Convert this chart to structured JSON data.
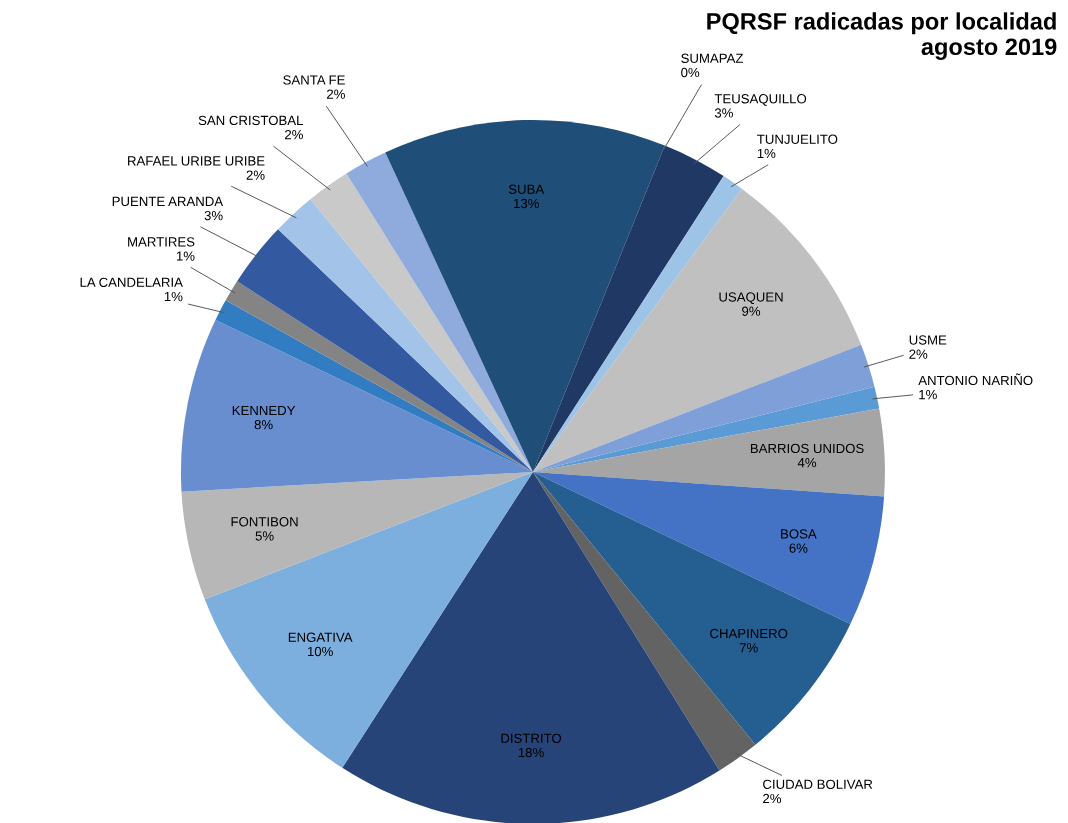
{
  "chart_data": {
    "type": "pie",
    "title": "PQRSF radicadas por localidad\nagosto 2019",
    "categories": [
      "ANTONIO NARIÑO",
      "BARRIOS UNIDOS",
      "BOSA",
      "CHAPINERO",
      "CIUDAD BOLIVAR",
      "DISTRITO",
      "ENGATIVA",
      "FONTIBON",
      "KENNEDY",
      "LA CANDELARIA",
      "MARTIRES",
      "PUENTE ARANDA",
      "RAFAEL URIBE URIBE",
      "SAN CRISTOBAL",
      "SANTA FE",
      "SUBA",
      "SUMAPAZ",
      "TEUSAQUILLO",
      "TUNJUELITO",
      "USAQUEN",
      "USME"
    ],
    "values": [
      1,
      4,
      6,
      7,
      2,
      18,
      10,
      5,
      8,
      1,
      1,
      3,
      2,
      2,
      2,
      13,
      0,
      3,
      1,
      9,
      2
    ],
    "value_labels": [
      "1%",
      "4%",
      "6%",
      "7%",
      "2%",
      "18%",
      "10%",
      "5%",
      "8%",
      "1%",
      "1%",
      "3%",
      "2%",
      "2%",
      "2%",
      "13%",
      "0%",
      "3%",
      "1%",
      "9%",
      "2%"
    ],
    "colors": [
      "#5b9bd5",
      "#a5a5a5",
      "#4472c4",
      "#255e91",
      "#636363",
      "#264478",
      "#7cafdd",
      "#b7b7b7",
      "#698ed0",
      "#327dc2",
      "#848484",
      "#335aa1",
      "#a3c3e8",
      "#c9c9c9",
      "#8faadc",
      "#1f4e79",
      "#2e5c8a",
      "#203864",
      "#9dc3e6",
      "#c0c0c0",
      "#7f9fd8"
    ]
  }
}
